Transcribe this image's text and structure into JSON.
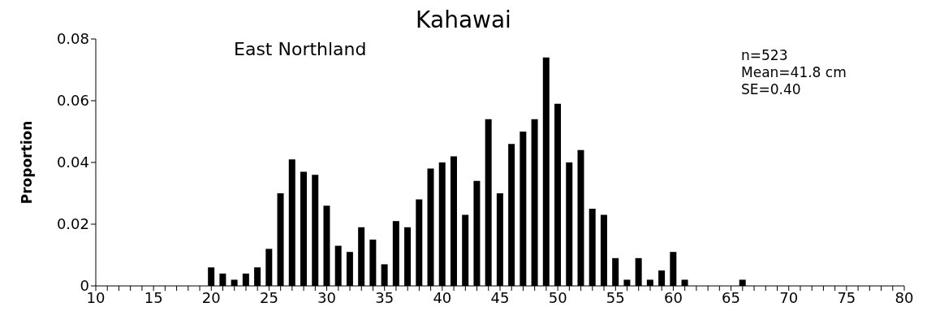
{
  "chart_data": {
    "type": "bar",
    "title": "Kahawai",
    "ylabel": "Proportion",
    "annotations": [
      "East Northland",
      "n=523",
      "Mean=41.8 cm",
      "SE=0.40"
    ],
    "x": [
      20,
      21,
      22,
      23,
      24,
      25,
      26,
      27,
      28,
      29,
      30,
      31,
      32,
      33,
      34,
      35,
      36,
      37,
      38,
      39,
      40,
      41,
      42,
      43,
      44,
      45,
      46,
      47,
      48,
      49,
      50,
      51,
      52,
      53,
      54,
      55,
      56,
      57,
      58,
      59,
      60,
      61,
      62,
      63,
      64,
      65,
      66
    ],
    "values": [
      0.006,
      0.004,
      0.002,
      0.004,
      0.006,
      0.012,
      0.03,
      0.041,
      0.037,
      0.036,
      0.026,
      0.013,
      0.011,
      0.019,
      0.015,
      0.007,
      0.021,
      0.019,
      0.028,
      0.038,
      0.04,
      0.042,
      0.023,
      0.034,
      0.054,
      0.03,
      0.046,
      0.05,
      0.054,
      0.074,
      0.059,
      0.04,
      0.044,
      0.025,
      0.023,
      0.009,
      0.002,
      0.009,
      0.002,
      0.005,
      0.011,
      0.002,
      0,
      0,
      0,
      0,
      0.002
    ],
    "color": "#000000",
    "xlim": [
      10,
      80
    ],
    "xticks": [
      10,
      {
        "value": 11,
        "label": null
      },
      {
        "value": 12,
        "label": null
      },
      {
        "value": 13,
        "label": null
      },
      {
        "value": 14,
        "label": null
      },
      15,
      {
        "value": 16,
        "label": null
      },
      {
        "value": 17,
        "label": null
      },
      {
        "value": 18,
        "label": null
      },
      {
        "value": 19,
        "label": null
      },
      20,
      {
        "value": 21,
        "label": null
      },
      {
        "value": 22,
        "label": null
      },
      {
        "value": 23,
        "label": null
      },
      {
        "value": 24,
        "label": null
      },
      25,
      {
        "value": 26,
        "label": null
      },
      {
        "value": 27,
        "label": null
      },
      {
        "value": 28,
        "label": null
      },
      {
        "value": 29,
        "label": null
      },
      30,
      {
        "value": 31,
        "label": null
      },
      {
        "value": 32,
        "label": null
      },
      {
        "value": 33,
        "label": null
      },
      {
        "value": 34,
        "label": null
      },
      35,
      {
        "value": 36,
        "label": null
      },
      {
        "value": 37,
        "label": null
      },
      {
        "value": 38,
        "label": null
      },
      {
        "value": 39,
        "label": null
      },
      40,
      {
        "value": 41,
        "label": null
      },
      {
        "value": 42,
        "label": null
      },
      {
        "value": 43,
        "label": null
      },
      {
        "value": 44,
        "label": null
      },
      45,
      {
        "value": 46,
        "label": null
      },
      {
        "value": 47,
        "label": null
      },
      {
        "value": 48,
        "label": null
      },
      {
        "value": 49,
        "label": null
      },
      50,
      {
        "value": 51,
        "label": null
      },
      {
        "value": 52,
        "label": null
      },
      {
        "value": 53,
        "label": null
      },
      {
        "value": 54,
        "label": null
      },
      55,
      {
        "value": 56,
        "label": null
      },
      {
        "value": 57,
        "label": null
      },
      {
        "value": 58,
        "label": null
      },
      {
        "value": 59,
        "label": null
      },
      60,
      {
        "value": 61,
        "label": null
      },
      {
        "value": 62,
        "label": null
      },
      {
        "value": 63,
        "label": null
      },
      {
        "value": 64,
        "label": null
      },
      65,
      {
        "value": 66,
        "label": null
      },
      {
        "value": 67,
        "label": null
      },
      {
        "value": 68,
        "label": null
      },
      {
        "value": 69,
        "label": null
      },
      70,
      {
        "value": 71,
        "label": null
      },
      {
        "value": 72,
        "label": null
      },
      {
        "value": 73,
        "label": null
      },
      {
        "value": 74,
        "label": null
      },
      75,
      {
        "value": 76,
        "label": null
      },
      {
        "value": 77,
        "label": null
      },
      {
        "value": 78,
        "label": null
      },
      {
        "value": 79,
        "label": null
      },
      80
    ],
    "ylim": [
      0,
      0.08
    ],
    "yticks": [
      0,
      0.02,
      0.04,
      0.06,
      0.08
    ],
    "grid": false,
    "legend": false
  }
}
